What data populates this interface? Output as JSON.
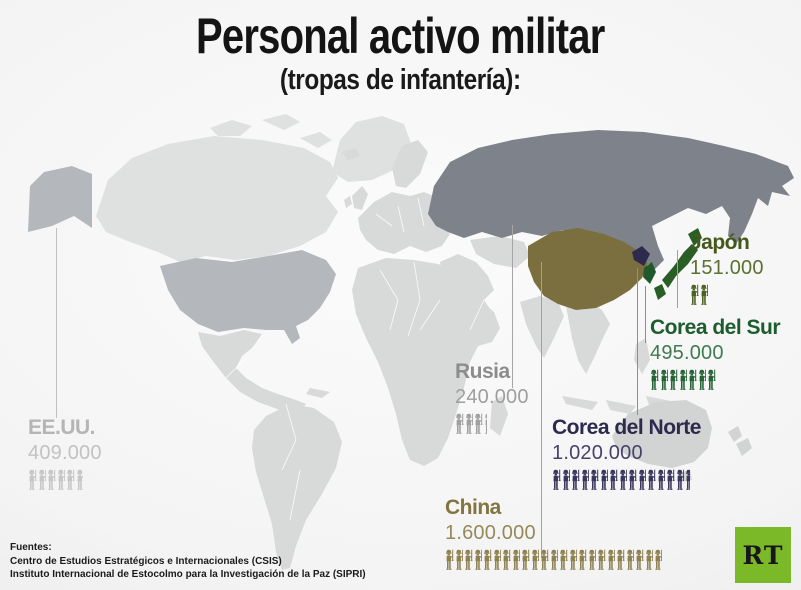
{
  "title": {
    "main": "Personal activo militar",
    "subtitle": "(tropas de infantería):"
  },
  "countries": [
    {
      "id": "usa",
      "name": "EE.UU.",
      "value": "409.000",
      "icon_count": 5.85,
      "name_color": "#b5b5b5",
      "value_color": "#c2c2c2",
      "icon_color": "#c6c6c6"
    },
    {
      "id": "russia",
      "name": "Rusia",
      "value": "240.000",
      "icon_count": 3.45,
      "name_color": "#8c8c8c",
      "value_color": "#9e9e9e",
      "icon_color": "#a0a0a0"
    },
    {
      "id": "china",
      "name": "China",
      "value": "1.600.000",
      "icon_count": 22.9,
      "name_color": "#82753f",
      "value_color": "#95895a",
      "icon_color": "#8e8150"
    },
    {
      "id": "north-korea",
      "name": "Corea del Norte",
      "value": "1.020.000",
      "icon_count": 14.55,
      "name_color": "#2d2a4e",
      "value_color": "#46426a",
      "icon_color": "#39355c"
    },
    {
      "id": "south-korea",
      "name": "Corea del Sur",
      "value": "495.000",
      "icon_count": 7.1,
      "name_color": "#1d5c2e",
      "value_color": "#3f7a50",
      "icon_color": "#256335"
    },
    {
      "id": "japan",
      "name": "Japón",
      "value": "151.000",
      "icon_count": 2.15,
      "name_color": "#44581c",
      "value_color": "#5d7030",
      "icon_color": "#4b6122"
    }
  ],
  "map_colors": {
    "land_light": "#d8d9d9",
    "land_lighter": "#dfe0e0",
    "usa": "#b4b8bc",
    "russia": "#7d828b",
    "china": "#7b6f3f",
    "japan": "#2a5e26",
    "south_korea": "#20592b",
    "north_korea": "#2e2a4e"
  },
  "sources": {
    "label": "Fuentes:",
    "lines": [
      "Centro de Estudios Estratégicos e Internacionales (CSIS)",
      "Instituto Internacional de Estocolmo para la Investigación de la Paz (SIPRI)"
    ]
  },
  "logo": {
    "text": "RT",
    "bg_color": "#7cb929"
  },
  "chart_data": {
    "type": "bar",
    "title": "Personal activo militar (tropas de infantería)",
    "categories": [
      "China",
      "Corea del Norte",
      "Corea del Sur",
      "EE.UU.",
      "Rusia",
      "Japón"
    ],
    "values": [
      1600000,
      1020000,
      495000,
      409000,
      240000,
      151000
    ],
    "value_labels": [
      "1.600.000",
      "1.020.000",
      "495.000",
      "409.000",
      "240.000",
      "151.000"
    ],
    "legend_position": "none",
    "grid": false,
    "note_icons_per_country": [
      22.9,
      14.55,
      7.1,
      5.85,
      3.45,
      2.15
    ]
  }
}
